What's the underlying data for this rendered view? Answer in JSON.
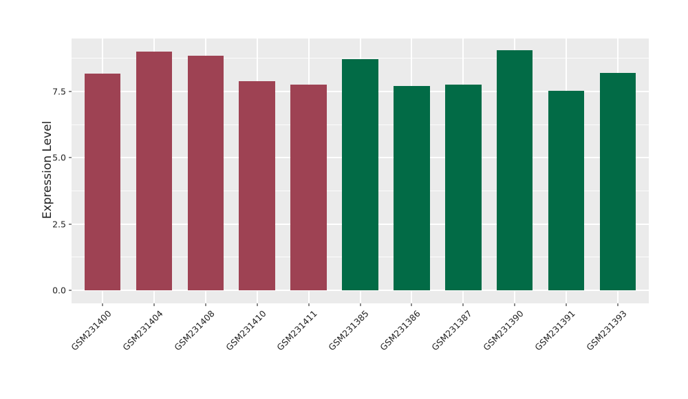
{
  "figure": {
    "background": "#FFFFFF",
    "panel_background": "#EBEBEB",
    "gridline_color": "#FFFFFF",
    "tick_mark_color": "#8A8A8A",
    "text_color": "#222222"
  },
  "chart_data": {
    "type": "bar",
    "title": "",
    "xlabel": "",
    "ylabel": "Expression Level",
    "categories": [
      "GSM231400",
      "GSM231404",
      "GSM231408",
      "GSM231410",
      "GSM231411",
      "GSM231385",
      "GSM231386",
      "GSM231387",
      "GSM231390",
      "GSM231391",
      "GSM231393"
    ],
    "values": [
      8.18,
      9.0,
      8.85,
      7.9,
      7.75,
      8.73,
      7.7,
      7.77,
      9.05,
      7.53,
      8.21
    ],
    "bar_colors": [
      "#9E4253",
      "#9E4253",
      "#9E4253",
      "#9E4253",
      "#9E4253",
      "#026B46",
      "#026B46",
      "#026B46",
      "#026B46",
      "#026B46",
      "#026B46"
    ],
    "ylim": [
      -0.5,
      9.5
    ],
    "yticks": [
      0.0,
      2.5,
      5.0,
      7.5
    ],
    "ytick_labels": [
      "0.0",
      "2.5",
      "5.0",
      "7.5"
    ],
    "yticks_minor": [
      1.25,
      3.75,
      6.25,
      8.75
    ],
    "bar_width_frac": 0.7,
    "x_edge_expand": 0.6,
    "x_tick_rotation_deg": 45,
    "grid": true,
    "legend_position": "none"
  }
}
